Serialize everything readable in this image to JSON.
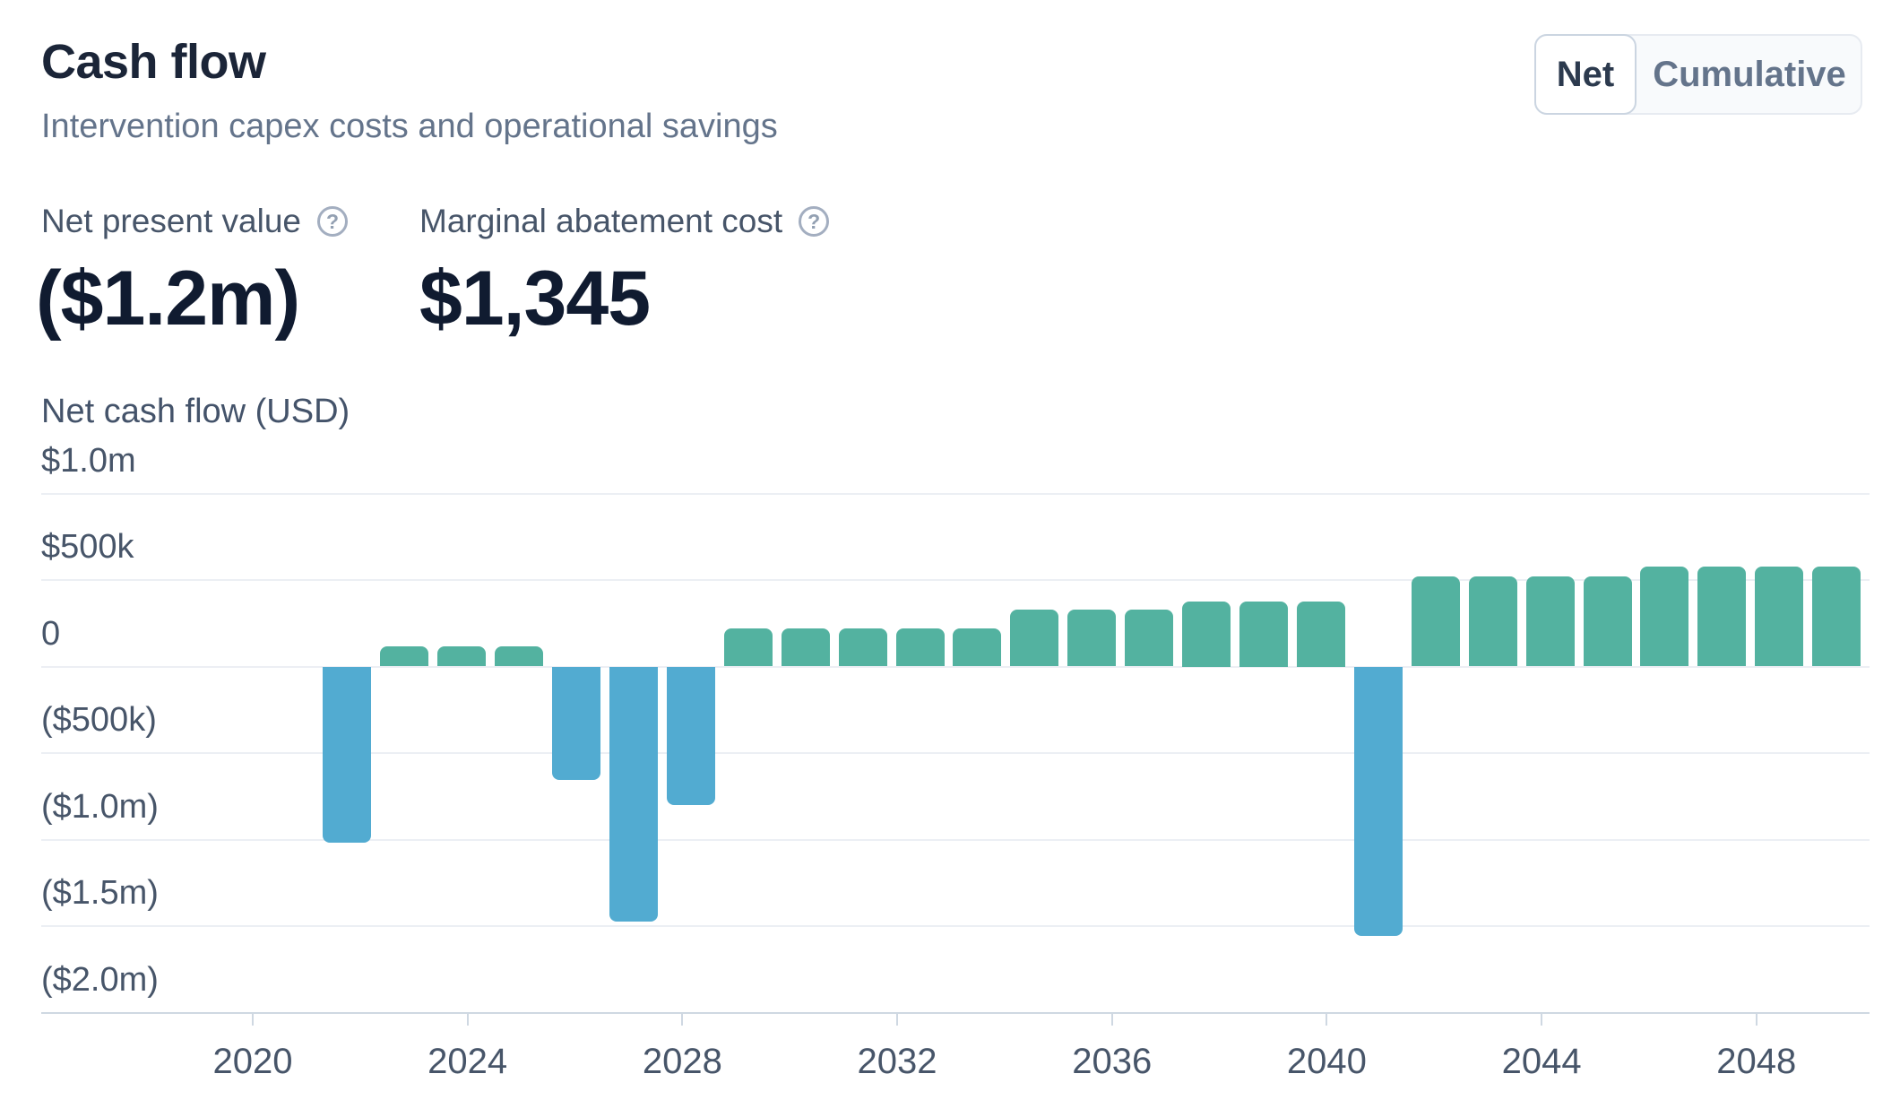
{
  "header": {
    "title": "Cash flow",
    "subtitle": "Intervention capex costs and operational savings"
  },
  "toggle": {
    "options": [
      {
        "label": "Net",
        "selected": true
      },
      {
        "label": "Cumulative",
        "selected": false
      }
    ]
  },
  "metrics": [
    {
      "label": "Net present value",
      "value": "($1.2m)",
      "help_icon": "question-circle"
    },
    {
      "label": "Marginal abatement cost",
      "value": "$1,345",
      "help_icon": "question-circle"
    }
  ],
  "chart_data": {
    "type": "bar",
    "title": "Net cash flow (USD)",
    "unit": "USD thousands",
    "grid": true,
    "legend": "none",
    "ylim": [
      -2000,
      1000
    ],
    "colors": {
      "positive": "#53B2A0",
      "negative": "#52ABD1"
    },
    "x": [
      2022,
      2023,
      2024,
      2025,
      2026,
      2027,
      2028,
      2029,
      2030,
      2031,
      2032,
      2033,
      2034,
      2035,
      2036,
      2037,
      2038,
      2039,
      2040,
      2041,
      2042,
      2043,
      2044,
      2045,
      2046,
      2047,
      2048
    ],
    "values": [
      -1015,
      115,
      115,
      115,
      -655,
      -1470,
      -800,
      220,
      220,
      220,
      220,
      220,
      330,
      330,
      330,
      375,
      375,
      375,
      -1555,
      520,
      520,
      520,
      520,
      580,
      580,
      580,
      580
    ],
    "y_ticks": [
      {
        "label": "$1.0m",
        "value": 1000
      },
      {
        "label": "$500k",
        "value": 500
      },
      {
        "label": "0",
        "value": 0
      },
      {
        "label": "($500k)",
        "value": -500
      },
      {
        "label": "($1.0m)",
        "value": -1000
      },
      {
        "label": "($1.5m)",
        "value": -1500
      },
      {
        "label": "($2.0m)",
        "value": -2000
      }
    ],
    "x_tick_years": [
      2020,
      2024,
      2028,
      2032,
      2036,
      2040,
      2044,
      2048
    ]
  }
}
